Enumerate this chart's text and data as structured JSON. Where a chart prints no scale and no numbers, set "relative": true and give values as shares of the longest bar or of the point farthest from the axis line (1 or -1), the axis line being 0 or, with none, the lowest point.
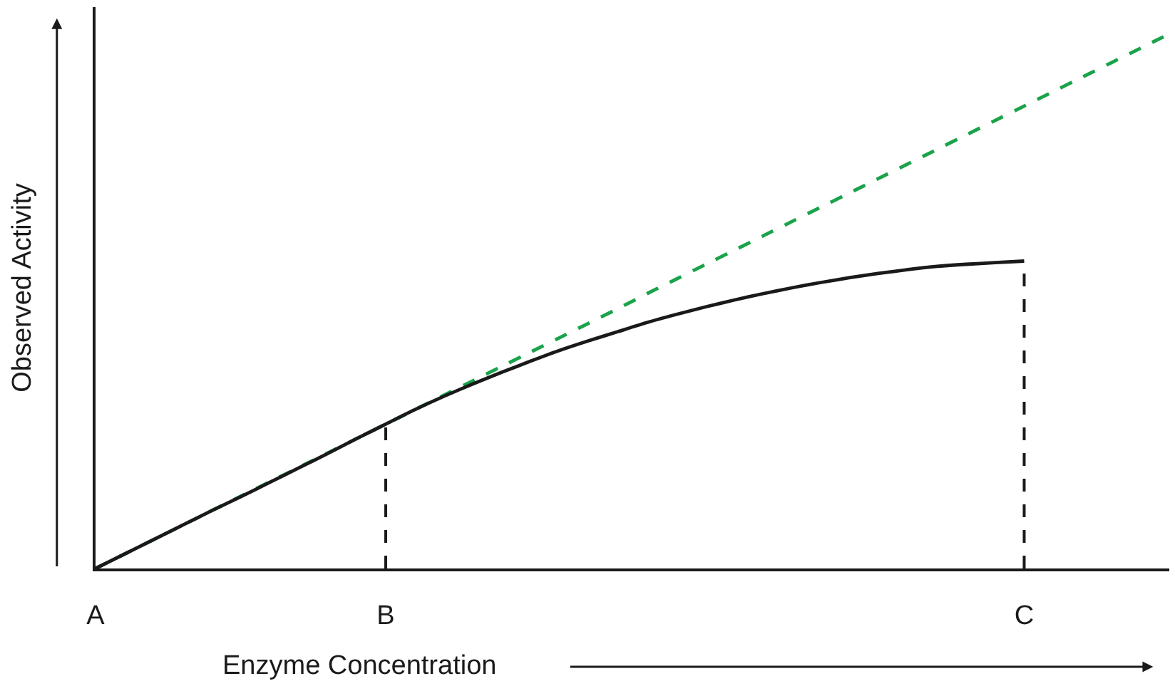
{
  "chart_data": {
    "type": "line",
    "relative": true,
    "xlabel": "Enzyme Concentration",
    "ylabel": "Observed Activity",
    "categories": [
      "A",
      null,
      null,
      null,
      null,
      null,
      null,
      null,
      null,
      null,
      "B",
      null,
      null,
      null,
      null,
      null,
      null,
      null,
      null,
      null,
      null,
      null,
      null,
      null,
      null,
      null,
      null,
      null,
      null,
      null,
      null,
      null,
      "C",
      null,
      null,
      null,
      null,
      null
    ],
    "marker": "none",
    "series": [
      {
        "color": "#1aa34a",
        "line_style": "dashed",
        "values": [
          0,
          0.027,
          0.054,
          0.081,
          0.108,
          0.135,
          0.162,
          0.189,
          0.216,
          0.243,
          0.27,
          0.297,
          0.324,
          0.351,
          0.378,
          0.405,
          0.432,
          0.459,
          0.486,
          0.514,
          0.541,
          0.568,
          0.595,
          0.622,
          0.649,
          0.676,
          0.703,
          0.73,
          0.757,
          0.784,
          0.811,
          0.838,
          0.865,
          0.892,
          0.919,
          0.946,
          0.973,
          1
        ]
      },
      {
        "color": "#1a1a1a",
        "line_style": "solid",
        "values": [
          0,
          0.027,
          0.054,
          0.081,
          0.108,
          0.134,
          0.161,
          0.188,
          0.215,
          0.243,
          0.27,
          0.297,
          0.322,
          0.345,
          0.367,
          0.388,
          0.408,
          0.426,
          0.443,
          0.46,
          0.475,
          0.489,
          0.502,
          0.514,
          0.525,
          0.535,
          0.544,
          0.552,
          0.559,
          0.565,
          0.569,
          0.572,
          0.575,
          null,
          null,
          null,
          null,
          null
        ]
      }
    ],
    "ref_lines": [
      {
        "axis": "x",
        "value": "B",
        "color": "#1a1a1a",
        "line_style": "dashed"
      },
      {
        "axis": "x",
        "value": "C",
        "color": "#1a1a1a",
        "line_style": "dashed"
      }
    ]
  }
}
